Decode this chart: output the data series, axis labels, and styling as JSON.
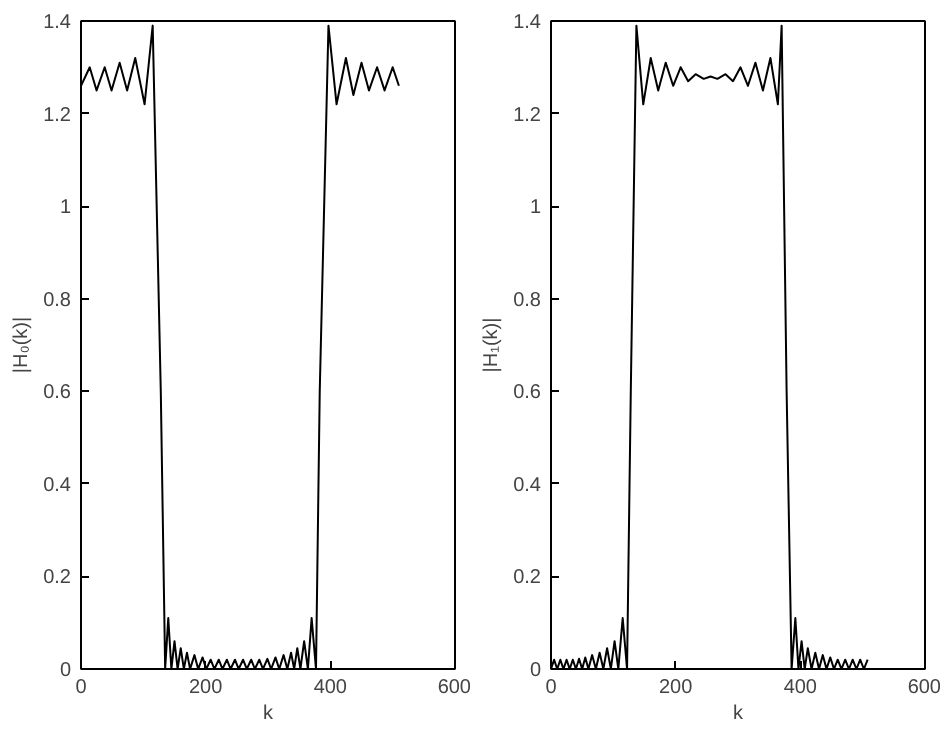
{
  "chart_data": [
    {
      "type": "line",
      "xlabel": "k",
      "ylabel": "|H₀(k)|",
      "xlim": [
        0,
        600
      ],
      "ylim": [
        0,
        1.4
      ],
      "xticks": [
        0,
        200,
        400,
        600
      ],
      "yticks": [
        0,
        0.2,
        0.4,
        0.6,
        0.8,
        1,
        1.2,
        1.4
      ],
      "series": [
        {
          "color": "#000000",
          "x": [
            0,
            14,
            25,
            38,
            49,
            62,
            74,
            87,
            102,
            115,
            128,
            135,
            140,
            145,
            150,
            155,
            160,
            165,
            170,
            175,
            182,
            188,
            195,
            201,
            208,
            214,
            221,
            227,
            234,
            240,
            247,
            253,
            260,
            266,
            273,
            279,
            286,
            292,
            299,
            305,
            312,
            318,
            325,
            331,
            337,
            342,
            347,
            352,
            358,
            364,
            370,
            377,
            383,
            397,
            410,
            425,
            437,
            450,
            462,
            475,
            487,
            500,
            510
          ],
          "values": [
            1.26,
            1.3,
            1.25,
            1.3,
            1.25,
            1.31,
            1.25,
            1.32,
            1.22,
            1.39,
            0.6,
            0,
            0.11,
            0,
            0.06,
            0,
            0.045,
            0,
            0.035,
            0,
            0.03,
            0,
            0.025,
            0,
            0.02,
            0,
            0.02,
            0,
            0.02,
            0,
            0.02,
            0,
            0.02,
            0,
            0.02,
            0,
            0.02,
            0,
            0.022,
            0,
            0.025,
            0,
            0.03,
            0,
            0.035,
            0,
            0.045,
            0,
            0.06,
            0,
            0.11,
            0,
            0.6,
            1.39,
            1.22,
            1.32,
            1.24,
            1.31,
            1.25,
            1.3,
            1.25,
            1.3,
            1.26
          ]
        }
      ]
    },
    {
      "type": "line",
      "xlabel": "k",
      "ylabel": "|H₁(k)|",
      "xlim": [
        0,
        600
      ],
      "ylim": [
        0,
        1.4
      ],
      "xticks": [
        0,
        200,
        400,
        600
      ],
      "yticks": [
        0,
        0.2,
        0.4,
        0.6,
        0.8,
        1,
        1.2,
        1.4
      ],
      "series": [
        {
          "color": "#000000",
          "x": [
            0,
            5,
            10,
            15,
            20,
            25,
            30,
            35,
            40,
            45,
            50,
            55,
            60,
            66,
            72,
            78,
            84,
            90,
            96,
            102,
            108,
            115,
            122,
            128,
            137,
            148,
            160,
            172,
            184,
            196,
            208,
            220,
            232,
            245,
            256,
            267,
            280,
            292,
            304,
            316,
            328,
            340,
            352,
            364,
            370,
            378,
            386,
            392,
            397,
            402,
            407,
            412,
            418,
            424,
            430,
            436,
            442,
            448,
            454,
            460,
            466,
            472,
            478,
            484,
            490,
            496,
            502,
            508
          ],
          "values": [
            0,
            0.02,
            0,
            0.02,
            0,
            0.02,
            0,
            0.02,
            0,
            0.022,
            0,
            0.025,
            0,
            0.03,
            0,
            0.035,
            0,
            0.045,
            0,
            0.06,
            0,
            0.11,
            0,
            0.6,
            1.39,
            1.22,
            1.32,
            1.25,
            1.31,
            1.26,
            1.3,
            1.27,
            1.285,
            1.275,
            1.28,
            1.275,
            1.285,
            1.27,
            1.3,
            1.26,
            1.31,
            1.25,
            1.32,
            1.22,
            1.39,
            0.6,
            0,
            0.11,
            0,
            0.06,
            0,
            0.045,
            0,
            0.035,
            0,
            0.03,
            0,
            0.025,
            0,
            0.02,
            0,
            0.02,
            0,
            0.02,
            0,
            0.02,
            0,
            0.02
          ]
        }
      ]
    }
  ]
}
